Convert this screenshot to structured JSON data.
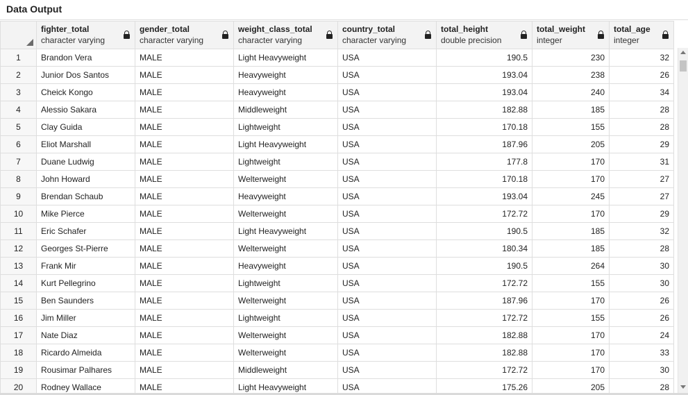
{
  "panel": {
    "title": "Data Output"
  },
  "columns": [
    {
      "name": "fighter_total",
      "type": "character varying",
      "align": "left"
    },
    {
      "name": "gender_total",
      "type": "character varying",
      "align": "left"
    },
    {
      "name": "weight_class_total",
      "type": "character varying",
      "align": "left"
    },
    {
      "name": "country_total",
      "type": "character varying",
      "align": "left"
    },
    {
      "name": "total_height",
      "type": "double precision",
      "align": "right"
    },
    {
      "name": "total_weight",
      "type": "integer",
      "align": "right"
    },
    {
      "name": "total_age",
      "type": "integer",
      "align": "right"
    }
  ],
  "rows": [
    [
      "1",
      "Brandon Vera",
      "MALE",
      "Light Heavyweight",
      "USA",
      "190.5",
      "230",
      "32"
    ],
    [
      "2",
      "Junior Dos Santos",
      "MALE",
      "Heavyweight",
      "USA",
      "193.04",
      "238",
      "26"
    ],
    [
      "3",
      "Cheick Kongo",
      "MALE",
      "Heavyweight",
      "USA",
      "193.04",
      "240",
      "34"
    ],
    [
      "4",
      "Alessio Sakara",
      "MALE",
      "Middleweight",
      "USA",
      "182.88",
      "185",
      "28"
    ],
    [
      "5",
      "Clay Guida",
      "MALE",
      "Lightweight",
      "USA",
      "170.18",
      "155",
      "28"
    ],
    [
      "6",
      "Eliot Marshall",
      "MALE",
      "Light Heavyweight",
      "USA",
      "187.96",
      "205",
      "29"
    ],
    [
      "7",
      "Duane Ludwig",
      "MALE",
      "Lightweight",
      "USA",
      "177.8",
      "170",
      "31"
    ],
    [
      "8",
      "John Howard",
      "MALE",
      "Welterweight",
      "USA",
      "170.18",
      "170",
      "27"
    ],
    [
      "9",
      "Brendan Schaub",
      "MALE",
      "Heavyweight",
      "USA",
      "193.04",
      "245",
      "27"
    ],
    [
      "10",
      "Mike Pierce",
      "MALE",
      "Welterweight",
      "USA",
      "172.72",
      "170",
      "29"
    ],
    [
      "11",
      "Eric Schafer",
      "MALE",
      "Light Heavyweight",
      "USA",
      "190.5",
      "185",
      "32"
    ],
    [
      "12",
      "Georges St-Pierre",
      "MALE",
      "Welterweight",
      "USA",
      "180.34",
      "185",
      "28"
    ],
    [
      "13",
      "Frank Mir",
      "MALE",
      "Heavyweight",
      "USA",
      "190.5",
      "264",
      "30"
    ],
    [
      "14",
      "Kurt Pellegrino",
      "MALE",
      "Lightweight",
      "USA",
      "172.72",
      "155",
      "30"
    ],
    [
      "15",
      "Ben Saunders",
      "MALE",
      "Welterweight",
      "USA",
      "187.96",
      "170",
      "26"
    ],
    [
      "16",
      "Jim Miller",
      "MALE",
      "Lightweight",
      "USA",
      "172.72",
      "155",
      "26"
    ],
    [
      "17",
      "Nate Diaz",
      "MALE",
      "Welterweight",
      "USA",
      "182.88",
      "170",
      "24"
    ],
    [
      "18",
      "Ricardo Almeida",
      "MALE",
      "Welterweight",
      "USA",
      "182.88",
      "170",
      "33"
    ],
    [
      "19",
      "Rousimar Palhares",
      "MALE",
      "Middleweight",
      "USA",
      "172.72",
      "170",
      "30"
    ],
    [
      "20",
      "Rodney Wallace",
      "MALE",
      "Light Heavyweight",
      "USA",
      "175.26",
      "205",
      "28"
    ]
  ]
}
